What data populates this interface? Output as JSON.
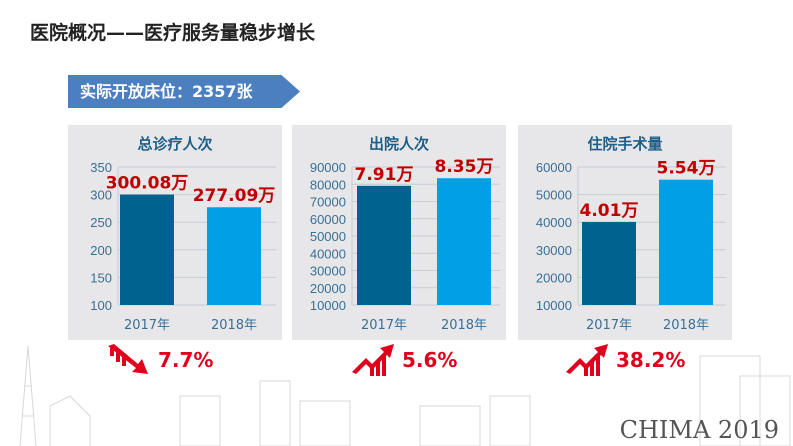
{
  "title": "医院概况——医疗服务量稳步增长",
  "banner": "实际开放床位：2357张",
  "colors": {
    "bar_2017": "#00628f",
    "bar_2018": "#00a0e6",
    "label": "#c00000",
    "axis_text": "#3a6f95",
    "accent_red": "#e0001b",
    "banner": "#4b7fc0"
  },
  "chart_data": [
    {
      "type": "bar",
      "title": "总诊疗人次",
      "categories": [
        "2017年",
        "2018年"
      ],
      "values": [
        300.08,
        277.09
      ],
      "data_labels": [
        "300.08万",
        "277.09万"
      ],
      "ylim": [
        100,
        350
      ],
      "yticks": [
        100,
        150,
        200,
        250,
        300,
        350
      ],
      "grid": true
    },
    {
      "type": "bar",
      "title": "出院人次",
      "categories": [
        "2017年",
        "2018年"
      ],
      "values": [
        79100,
        83500
      ],
      "data_labels": [
        "7.91万",
        "8.35万"
      ],
      "ylim": [
        10000,
        90000
      ],
      "yticks": [
        10000,
        20000,
        30000,
        40000,
        50000,
        60000,
        70000,
        80000,
        90000
      ],
      "grid": true
    },
    {
      "type": "bar",
      "title": "住院手术量",
      "categories": [
        "2017年",
        "2018年"
      ],
      "values": [
        40100,
        55400
      ],
      "data_labels": [
        "4.01万",
        "5.54万"
      ],
      "ylim": [
        10000,
        60000
      ],
      "yticks": [
        10000,
        20000,
        30000,
        40000,
        50000,
        60000
      ],
      "grid": true
    }
  ],
  "changes": [
    {
      "icon": "trend-down-icon",
      "text": "7.7%"
    },
    {
      "icon": "trend-up-icon",
      "text": "5.6%"
    },
    {
      "icon": "trend-up-icon",
      "text": "38.2%"
    }
  ],
  "brand": "CHIMA 2019"
}
